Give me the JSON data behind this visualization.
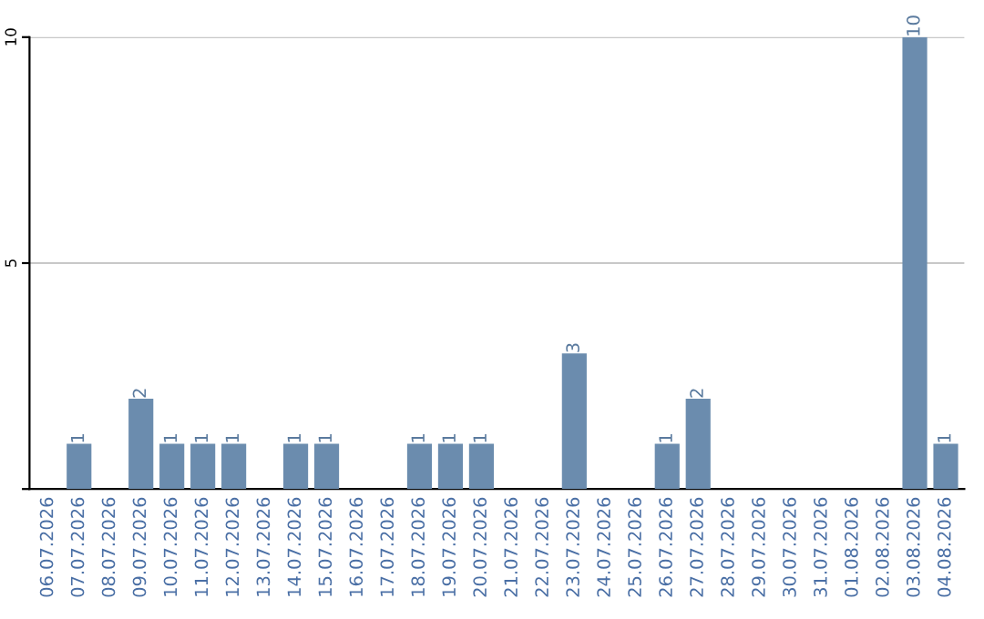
{
  "chart_data": {
    "type": "bar",
    "categories": [
      "06.07.2026",
      "07.07.2026",
      "08.07.2026",
      "09.07.2026",
      "10.07.2026",
      "11.07.2026",
      "12.07.2026",
      "13.07.2026",
      "14.07.2026",
      "15.07.2026",
      "16.07.2026",
      "17.07.2026",
      "18.07.2026",
      "19.07.2026",
      "20.07.2026",
      "21.07.2026",
      "22.07.2026",
      "23.07.2026",
      "24.07.2026",
      "25.07.2026",
      "26.07.2026",
      "27.07.2026",
      "28.07.2026",
      "29.07.2026",
      "30.07.2026",
      "31.07.2026",
      "01.08.2026",
      "02.08.2026",
      "03.08.2026",
      "04.08.2026"
    ],
    "values": [
      0,
      1,
      0,
      2,
      1,
      1,
      1,
      0,
      1,
      1,
      0,
      0,
      1,
      1,
      1,
      0,
      0,
      3,
      0,
      0,
      1,
      2,
      0,
      0,
      0,
      0,
      0,
      0,
      10,
      1
    ],
    "value_labels": [
      null,
      "1",
      null,
      "2",
      "1",
      "1",
      "1",
      null,
      "1",
      "1",
      null,
      null,
      "1",
      "1",
      "1",
      null,
      null,
      "3",
      null,
      null,
      "1",
      "2",
      null,
      null,
      null,
      null,
      null,
      null,
      "10",
      "1"
    ],
    "color": "#6b8cae",
    "ylim": [
      0,
      10
    ],
    "yticks": [
      {
        "value": 0,
        "label": null
      },
      5,
      10
    ],
    "grid": "y"
  }
}
